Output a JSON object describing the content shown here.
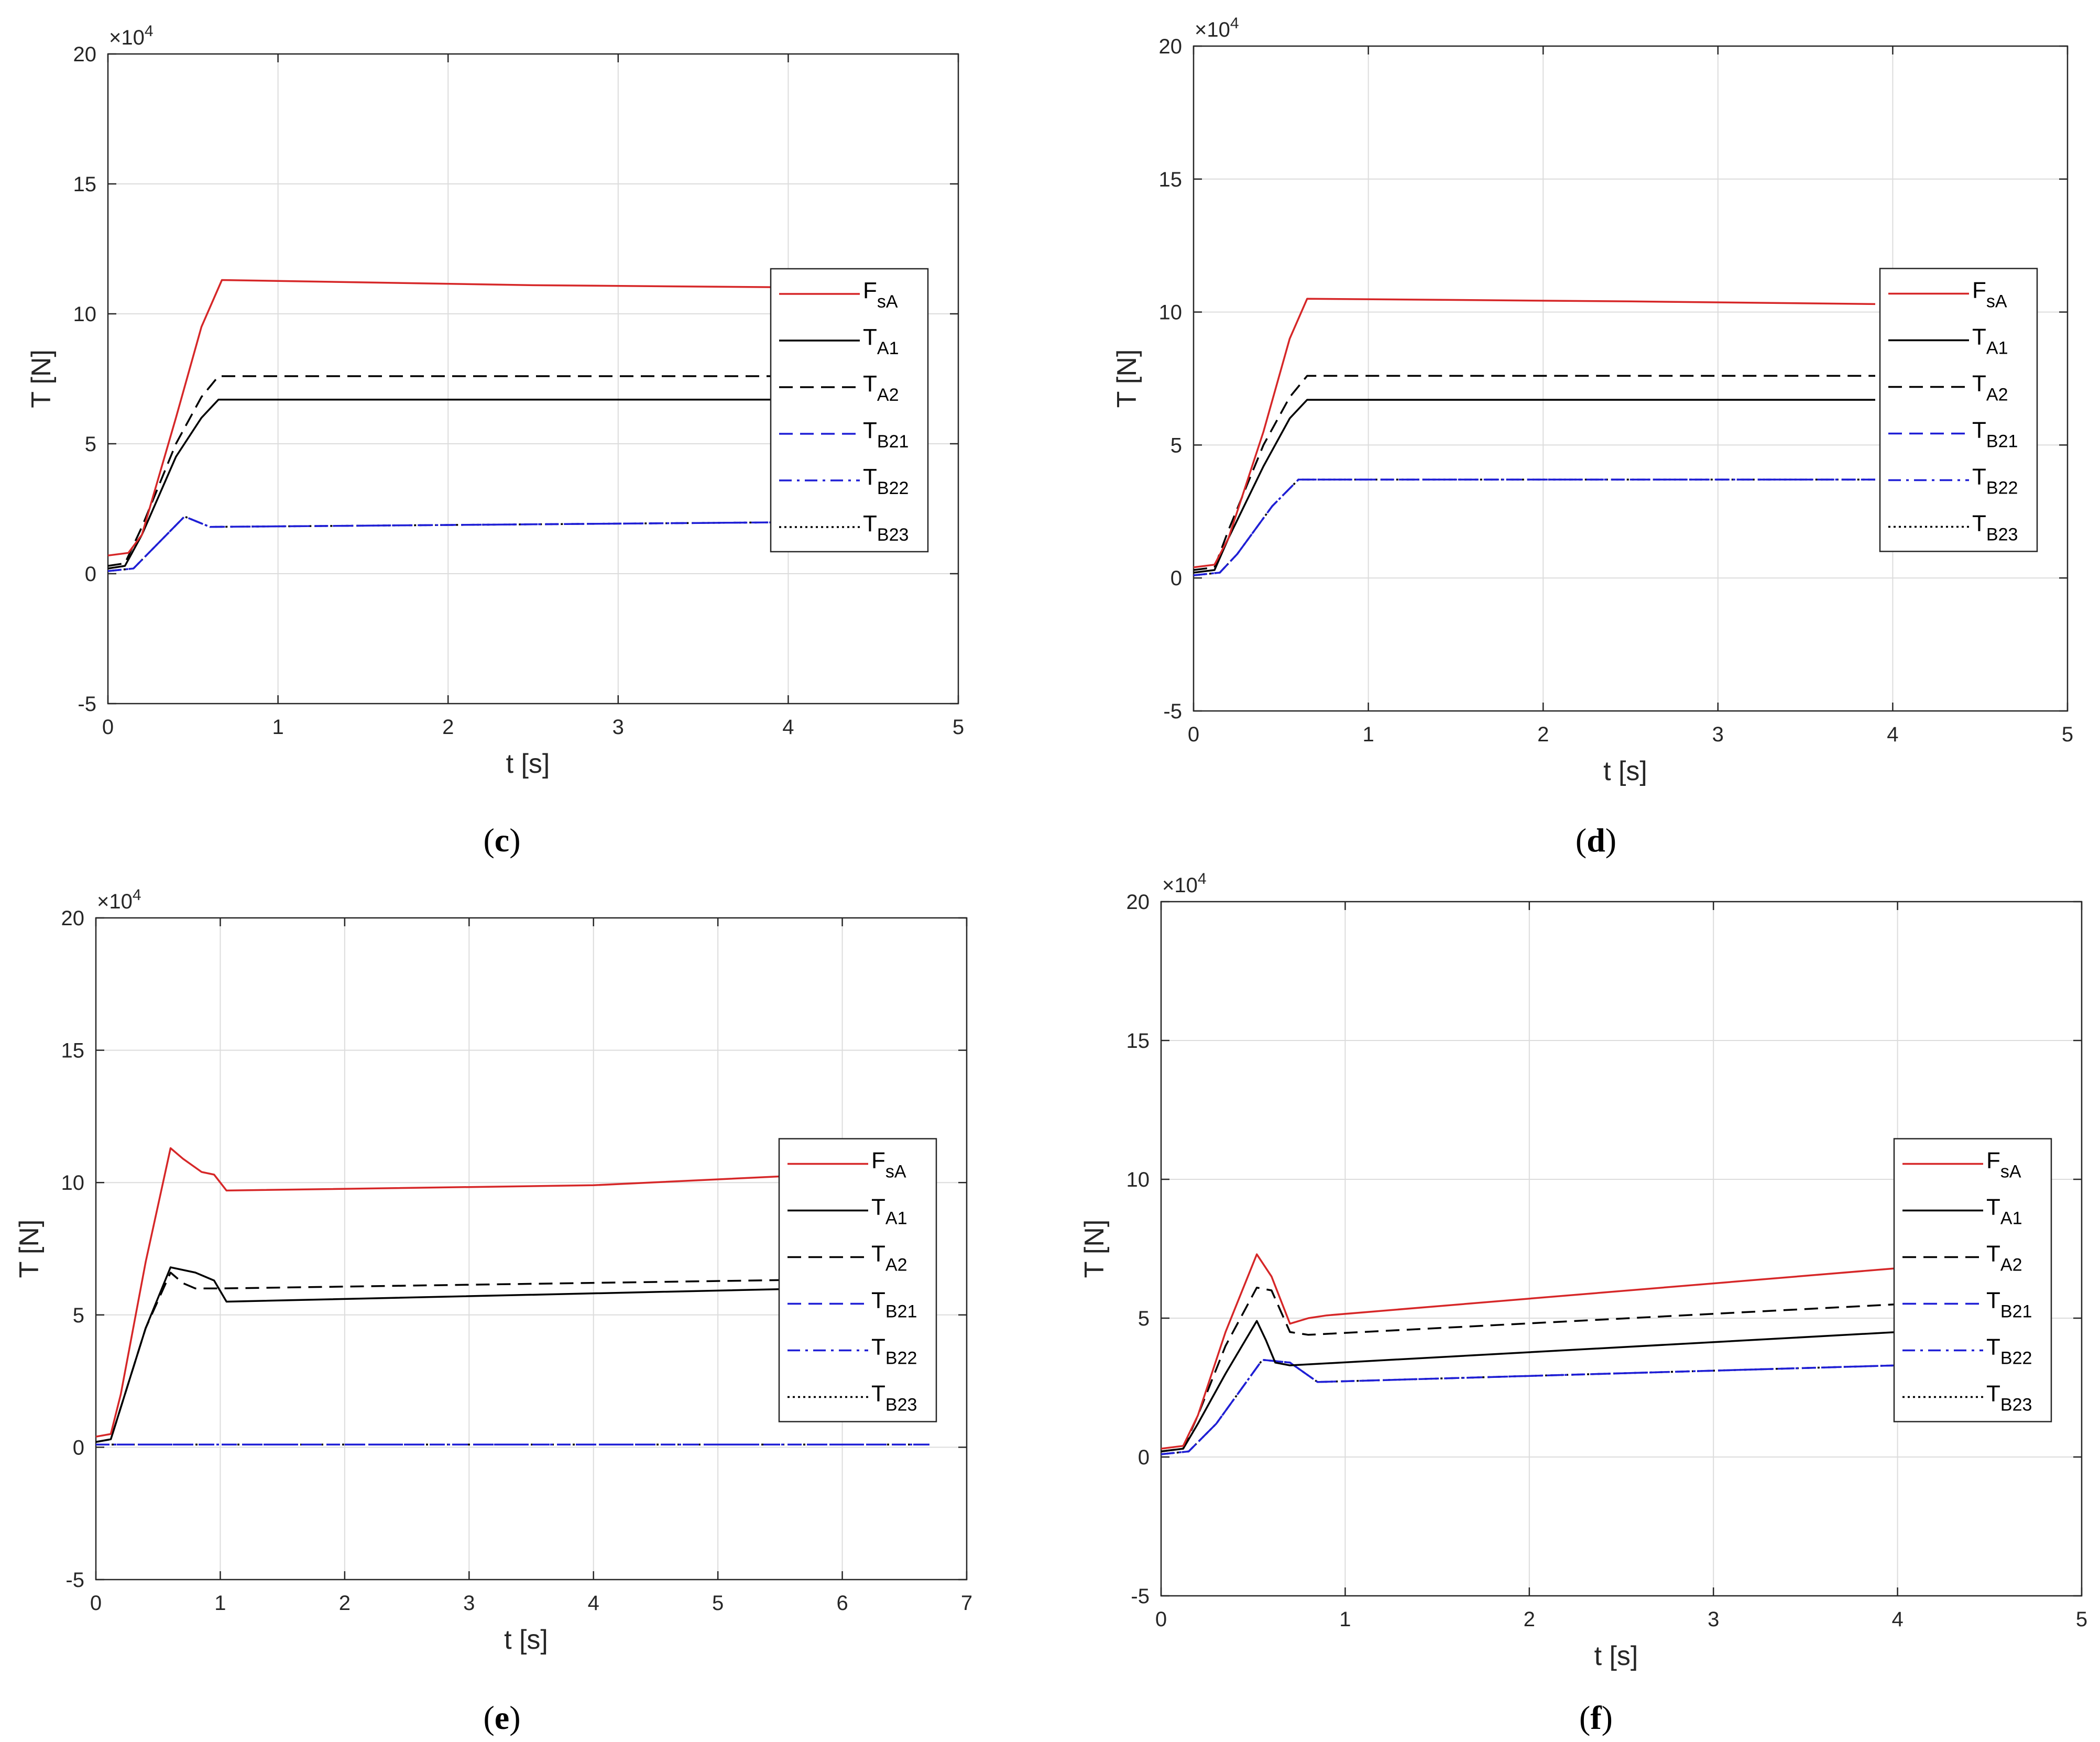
{
  "series_styles": [
    {
      "key": "FsA",
      "main": "F",
      "sub": "sA",
      "color": "#d62728",
      "dash": ""
    },
    {
      "key": "TA1",
      "main": "T",
      "sub": "A1",
      "color": "#000000",
      "dash": ""
    },
    {
      "key": "TA2",
      "main": "T",
      "sub": "A2",
      "color": "#000000",
      "dash": "26,14"
    },
    {
      "key": "TB21",
      "main": "T",
      "sub": "B21",
      "color": "#1f1fd6",
      "dash": "26,14"
    },
    {
      "key": "TB22",
      "main": "T",
      "sub": "B22",
      "color": "#1f1fd6",
      "dash": "24,10,5,10"
    },
    {
      "key": "TB23",
      "main": "T",
      "sub": "B23",
      "color": "#000000",
      "dash": "4,6"
    }
  ],
  "chart_data": [
    {
      "type": "line",
      "caption": "c",
      "xlabel": "t [s]",
      "ylabel": "T [N]",
      "y_multiplier": "×10",
      "y_multiplier_exp": "4",
      "xlim": [
        0,
        5
      ],
      "ylim": [
        -5,
        20
      ],
      "xticks": [
        0,
        1,
        2,
        3,
        4,
        5
      ],
      "yticks": [
        -5,
        0,
        5,
        10,
        15,
        20
      ],
      "grid": true,
      "legend": "right",
      "series": [
        {
          "key": "FsA",
          "x": [
            0,
            0.12,
            0.2,
            0.4,
            0.55,
            0.67,
            2.5,
            4.4
          ],
          "y": [
            0.7,
            0.8,
            1.5,
            6,
            9.5,
            11.3,
            11.1,
            11.0
          ]
        },
        {
          "key": "TA1",
          "x": [
            0,
            0.1,
            0.2,
            0.4,
            0.55,
            0.65,
            4.4
          ],
          "y": [
            0.2,
            0.3,
            1.5,
            4.5,
            6,
            6.7,
            6.7
          ]
        },
        {
          "key": "TA2",
          "x": [
            0,
            0.1,
            0.2,
            0.4,
            0.55,
            0.65,
            4.4
          ],
          "y": [
            0.3,
            0.4,
            1.8,
            5,
            6.8,
            7.6,
            7.6
          ]
        },
        {
          "key": "TB21",
          "x": [
            0,
            0.15,
            0.3,
            0.45,
            0.6,
            4.4
          ],
          "y": [
            0.1,
            0.2,
            1.2,
            2.2,
            1.8,
            2.0
          ]
        },
        {
          "key": "TB22",
          "x": [
            0,
            0.15,
            0.3,
            0.45,
            0.6,
            4.4
          ],
          "y": [
            0.1,
            0.2,
            1.2,
            2.2,
            1.8,
            2.0
          ]
        },
        {
          "key": "TB23",
          "x": [
            0,
            0.15,
            0.3,
            0.45,
            0.6,
            4.4
          ],
          "y": [
            0.1,
            0.2,
            1.2,
            2.2,
            1.8,
            2.0
          ]
        }
      ]
    },
    {
      "type": "line",
      "caption": "d",
      "xlabel": "t [s]",
      "ylabel": "T [N]",
      "y_multiplier": "×10",
      "y_multiplier_exp": "4",
      "xlim": [
        0,
        5
      ],
      "ylim": [
        -5,
        20
      ],
      "xticks": [
        0,
        1,
        2,
        3,
        4,
        5
      ],
      "yticks": [
        -5,
        0,
        5,
        10,
        15,
        20
      ],
      "grid": true,
      "legend": "right",
      "series": [
        {
          "key": "FsA",
          "x": [
            0,
            0.12,
            0.2,
            0.4,
            0.55,
            0.65,
            2.5,
            3.9
          ],
          "y": [
            0.4,
            0.5,
            1.5,
            5.5,
            9,
            10.5,
            10.4,
            10.3
          ]
        },
        {
          "key": "TA1",
          "x": [
            0,
            0.12,
            0.2,
            0.4,
            0.55,
            0.65,
            3.9
          ],
          "y": [
            0.2,
            0.3,
            1.5,
            4.2,
            6,
            6.7,
            6.7
          ]
        },
        {
          "key": "TA2",
          "x": [
            0,
            0.12,
            0.2,
            0.4,
            0.55,
            0.65,
            3.9
          ],
          "y": [
            0.3,
            0.4,
            1.8,
            5,
            6.8,
            7.6,
            7.6
          ]
        },
        {
          "key": "TB21",
          "x": [
            0,
            0.15,
            0.25,
            0.45,
            0.6,
            3.9
          ],
          "y": [
            0.1,
            0.2,
            0.9,
            2.7,
            3.7,
            3.7
          ]
        },
        {
          "key": "TB22",
          "x": [
            0,
            0.15,
            0.25,
            0.45,
            0.6,
            3.9
          ],
          "y": [
            0.1,
            0.2,
            0.9,
            2.7,
            3.7,
            3.7
          ]
        },
        {
          "key": "TB23",
          "x": [
            0,
            0.15,
            0.25,
            0.45,
            0.6,
            3.9
          ],
          "y": [
            0.1,
            0.2,
            0.9,
            2.7,
            3.7,
            3.7
          ]
        }
      ]
    },
    {
      "type": "line",
      "caption": "e",
      "xlabel": "t [s]",
      "ylabel": "T [N]",
      "y_multiplier": "×10",
      "y_multiplier_exp": "4",
      "xlim": [
        0,
        7
      ],
      "ylim": [
        -5,
        20
      ],
      "xticks": [
        0,
        1,
        2,
        3,
        4,
        5,
        6,
        7
      ],
      "yticks": [
        -5,
        0,
        5,
        10,
        15,
        20
      ],
      "grid": true,
      "legend": "right",
      "series": [
        {
          "key": "FsA",
          "x": [
            0,
            0.12,
            0.2,
            0.4,
            0.6,
            0.7,
            0.85,
            0.95,
            1.05,
            4,
            6.7
          ],
          "y": [
            0.4,
            0.5,
            2,
            7,
            11.3,
            10.9,
            10.4,
            10.3,
            9.7,
            9.9,
            10.5
          ]
        },
        {
          "key": "TA1",
          "x": [
            0,
            0.12,
            0.2,
            0.4,
            0.6,
            0.8,
            0.95,
            1.05,
            6.7
          ],
          "y": [
            0.2,
            0.3,
            1.5,
            4.5,
            6.8,
            6.6,
            6.3,
            5.5,
            6.1
          ]
        },
        {
          "key": "TA2",
          "x": [
            0,
            0.12,
            0.2,
            0.4,
            0.6,
            0.7,
            0.8,
            1.0,
            6.7
          ],
          "y": [
            0.2,
            0.3,
            1.5,
            4.5,
            6.6,
            6.2,
            6.0,
            6.0,
            6.4
          ]
        },
        {
          "key": "TB21",
          "x": [
            0,
            6.7
          ],
          "y": [
            0.1,
            0.1
          ]
        },
        {
          "key": "TB22",
          "x": [
            0,
            6.7
          ],
          "y": [
            0.1,
            0.1
          ]
        },
        {
          "key": "TB23",
          "x": [
            0,
            6.7
          ],
          "y": [
            0.1,
            0.1
          ]
        }
      ]
    },
    {
      "type": "line",
      "caption": "f",
      "xlabel": "t [s]",
      "ylabel": "T [N]",
      "y_multiplier": "×10",
      "y_multiplier_exp": "4",
      "xlim": [
        0,
        5
      ],
      "ylim": [
        -5,
        20
      ],
      "xticks": [
        0,
        1,
        2,
        3,
        4,
        5
      ],
      "yticks": [
        -5,
        0,
        5,
        10,
        15,
        20
      ],
      "grid": true,
      "legend": "right",
      "series": [
        {
          "key": "FsA",
          "x": [
            0,
            0.12,
            0.2,
            0.35,
            0.52,
            0.6,
            0.7,
            0.8,
            0.9,
            4.0
          ],
          "y": [
            0.3,
            0.4,
            1.5,
            4.5,
            7.3,
            6.5,
            4.8,
            5,
            5.1,
            6.8
          ]
        },
        {
          "key": "TA1",
          "x": [
            0,
            0.12,
            0.2,
            0.35,
            0.52,
            0.57,
            0.62,
            0.7,
            4.0
          ],
          "y": [
            0.2,
            0.3,
            1.2,
            3,
            4.9,
            4.2,
            3.4,
            3.3,
            4.5
          ]
        },
        {
          "key": "TA2",
          "x": [
            0,
            0.12,
            0.2,
            0.35,
            0.52,
            0.6,
            0.7,
            0.8,
            4.0
          ],
          "y": [
            0.2,
            0.3,
            1.5,
            4,
            6.1,
            6.0,
            4.5,
            4.4,
            5.5
          ]
        },
        {
          "key": "TB21",
          "x": [
            0,
            0.15,
            0.3,
            0.55,
            0.7,
            0.85,
            4.0
          ],
          "y": [
            0.1,
            0.2,
            1.2,
            3.5,
            3.4,
            2.7,
            3.3
          ]
        },
        {
          "key": "TB22",
          "x": [
            0,
            0.15,
            0.3,
            0.55,
            0.7,
            0.85,
            4.0
          ],
          "y": [
            0.1,
            0.2,
            1.2,
            3.5,
            3.4,
            2.7,
            3.3
          ]
        },
        {
          "key": "TB23",
          "x": [
            0,
            0.15,
            0.3,
            0.55,
            0.7,
            0.85,
            4.0
          ],
          "y": [
            0.1,
            0.2,
            1.2,
            3.5,
            3.4,
            2.7,
            3.3
          ]
        }
      ]
    }
  ]
}
